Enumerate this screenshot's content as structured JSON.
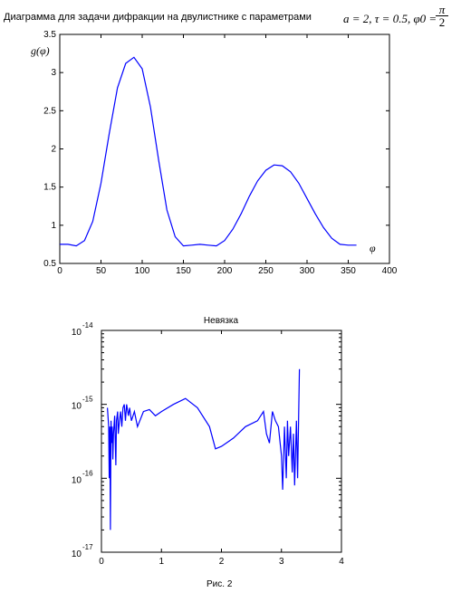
{
  "heading": {
    "text": "Диаграмма для задачи дифракции на двулистнике с параметрами",
    "formula": "a = 2, τ = 0.5, φ0 =",
    "phi0_numerator": "π",
    "phi0_denominator": "2"
  },
  "caption": "Рис. 2",
  "chart_data": [
    {
      "type": "line",
      "title": "",
      "xlabel": "φ",
      "ylabel": "g(φ)",
      "xlim": [
        0,
        400
      ],
      "ylim": [
        0.5,
        3.5
      ],
      "xticks": [
        0,
        50,
        100,
        150,
        200,
        250,
        300,
        350,
        400
      ],
      "yticks": [
        0.5,
        1,
        1.5,
        2,
        2.5,
        3,
        3.5
      ],
      "color": "#0000ff",
      "x": [
        0,
        10,
        20,
        30,
        40,
        50,
        60,
        70,
        80,
        90,
        100,
        110,
        120,
        130,
        140,
        150,
        160,
        170,
        180,
        190,
        200,
        210,
        220,
        230,
        240,
        250,
        260,
        270,
        280,
        290,
        300,
        310,
        320,
        330,
        340,
        350,
        360
      ],
      "y": [
        0.75,
        0.75,
        0.73,
        0.8,
        1.05,
        1.55,
        2.2,
        2.8,
        3.12,
        3.2,
        3.05,
        2.55,
        1.85,
        1.2,
        0.85,
        0.73,
        0.74,
        0.75,
        0.74,
        0.73,
        0.8,
        0.95,
        1.15,
        1.38,
        1.58,
        1.72,
        1.79,
        1.78,
        1.7,
        1.55,
        1.35,
        1.15,
        0.97,
        0.83,
        0.75,
        0.74,
        0.74
      ]
    },
    {
      "type": "line",
      "title": "Невязка",
      "xlabel": "",
      "ylabel": "",
      "scale_y": "log",
      "xlim": [
        0,
        4
      ],
      "ylim": [
        1e-17,
        1e-14
      ],
      "xticks": [
        0,
        1,
        2,
        3,
        4
      ],
      "yticks": [
        "10^-17",
        "10^-16",
        "10^-15",
        "10^-14"
      ],
      "color": "#0000ff",
      "x": [
        0.1,
        0.12,
        0.13,
        0.14,
        0.15,
        0.16,
        0.17,
        0.18,
        0.19,
        0.2,
        0.22,
        0.24,
        0.25,
        0.27,
        0.28,
        0.3,
        0.32,
        0.34,
        0.36,
        0.38,
        0.4,
        0.42,
        0.45,
        0.47,
        0.5,
        0.55,
        0.6,
        0.7,
        0.8,
        0.9,
        1.0,
        1.2,
        1.4,
        1.6,
        1.8,
        1.9,
        2.0,
        2.2,
        2.4,
        2.6,
        2.7,
        2.75,
        2.8,
        2.85,
        2.9,
        2.95,
        3.0,
        3.02,
        3.05,
        3.08,
        3.1,
        3.12,
        3.15,
        3.18,
        3.2,
        3.22,
        3.25,
        3.27,
        3.3
      ],
      "y": [
        9e-16,
        5e-16,
        1e-16,
        5e-16,
        2e-17,
        6e-16,
        3e-16,
        5e-16,
        1.8e-16,
        4e-16,
        7e-16,
        1.5e-16,
        6e-16,
        8e-16,
        4e-16,
        6e-16,
        8e-16,
        5e-16,
        9e-16,
        1e-15,
        6e-16,
        1e-15,
        7e-16,
        9e-16,
        6e-16,
        8e-16,
        5e-16,
        8e-16,
        8.5e-16,
        7e-16,
        8e-16,
        1e-15,
        1.2e-15,
        9e-16,
        5e-16,
        2.5e-16,
        2.7e-16,
        3.5e-16,
        5e-16,
        6e-16,
        8e-16,
        4e-16,
        3e-16,
        8e-16,
        6e-16,
        5e-16,
        2e-16,
        7e-17,
        5e-16,
        1e-16,
        6e-16,
        2e-16,
        5e-16,
        1.2e-16,
        4e-16,
        8e-17,
        6e-16,
        1e-16,
        3e-15
      ]
    }
  ]
}
